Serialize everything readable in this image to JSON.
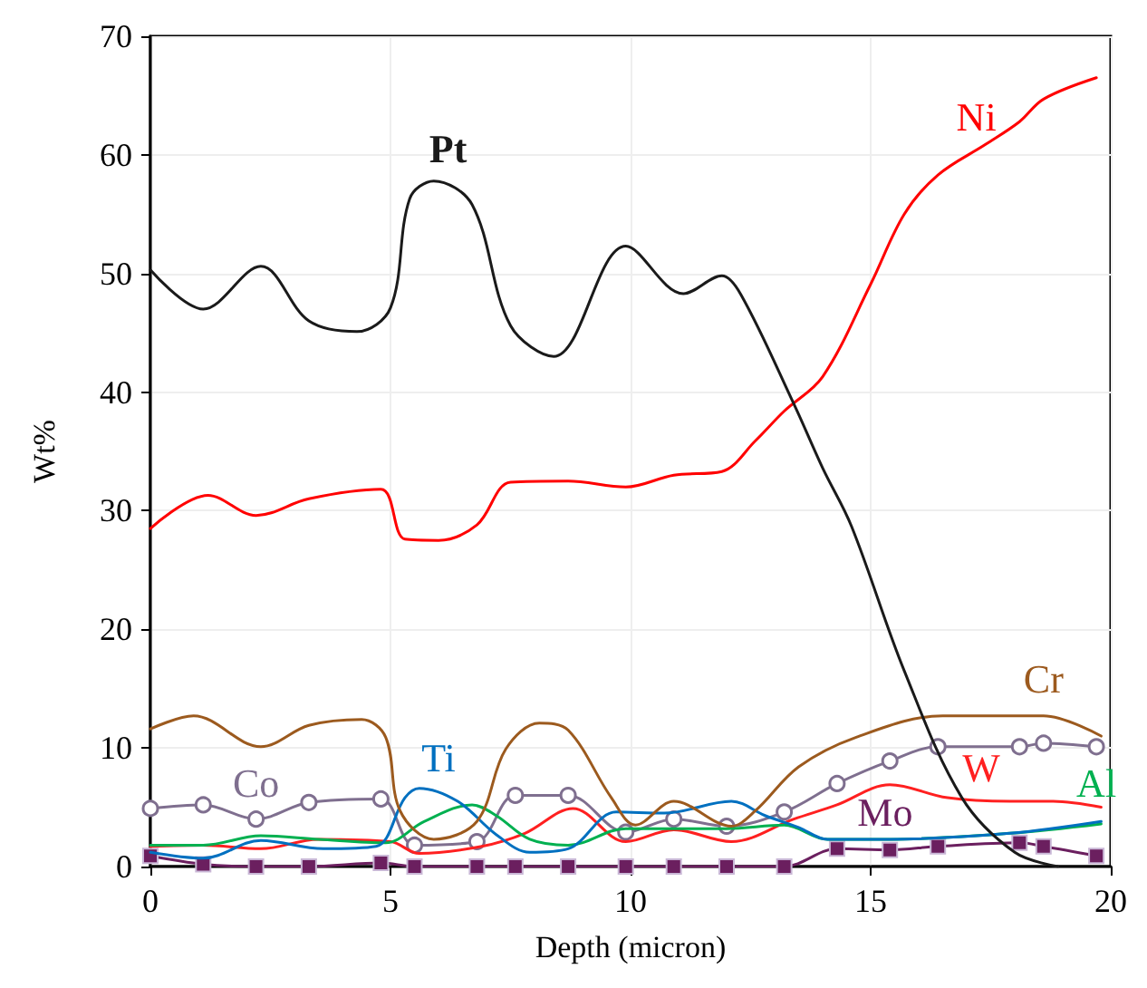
{
  "chart_data": {
    "type": "line",
    "xlabel": "Depth (micron)",
    "ylabel": "Wt%",
    "xlim": [
      0,
      20
    ],
    "xticks": [
      0,
      5,
      10,
      15,
      20
    ],
    "ylim": [
      0,
      70
    ],
    "yticks": [
      0,
      10,
      20,
      30,
      40,
      50,
      60,
      70
    ],
    "grid": true,
    "marker": "none",
    "line_style": "solid",
    "series": [
      {
        "name": "Pt",
        "color": "#1a1a1a",
        "x": [
          0,
          1.1,
          2.3,
          3.3,
          4.3,
          5.0,
          5.4,
          5.9,
          6.7,
          7.5,
          8.4,
          9.9,
          11.1,
          11.9,
          12.3,
          13.4,
          14.0,
          14.6,
          15.7,
          16.9,
          18.0,
          18.9
        ],
        "values": [
          50.3,
          47.0,
          50.6,
          46.0,
          45.1,
          47.1,
          56.3,
          57.8,
          55.8,
          45.6,
          43.0,
          52.3,
          48.3,
          49.8,
          48.2,
          39,
          33.6,
          28.7,
          16.5,
          5.8,
          1.2,
          0
        ]
      },
      {
        "name": "Ni",
        "color": "#ff0000",
        "x": [
          0,
          1.2,
          2.2,
          3.3,
          4.8,
          5.3,
          6.0,
          6.8,
          7.5,
          8.7,
          9.9,
          10.9,
          11.9,
          12.6,
          13.2,
          14.0,
          15.0,
          15.7,
          16.4,
          17.4,
          18.1,
          18.6,
          19.7
        ],
        "values": [
          28.5,
          31.3,
          29.6,
          31,
          31.8,
          27.6,
          27.5,
          28.8,
          32.4,
          32.5,
          32.0,
          33.0,
          33.3,
          35.9,
          38.4,
          41.3,
          49.1,
          55,
          58.3,
          60.9,
          62.8,
          64.7,
          66.5
        ]
      },
      {
        "name": "Cr",
        "color": "#9c5a1e",
        "x": [
          0,
          0.9,
          2.3,
          3.3,
          4.4,
          4.9,
          5.2,
          5.9,
          6.8,
          7.4,
          8.1,
          8.7,
          9.6,
          10.1,
          10.9,
          12.1,
          12.6,
          13.5,
          14.7,
          16.5,
          18.6,
          19.8
        ],
        "values": [
          11.6,
          12.7,
          10.1,
          11.9,
          12.4,
          10.9,
          4.7,
          2.3,
          3.8,
          9.9,
          12.1,
          11.5,
          5.8,
          3.5,
          5.5,
          3.4,
          4.7,
          8.4,
          10.9,
          12.7,
          12.7,
          11.0
        ]
      },
      {
        "name": "Ti",
        "color": "#0070c0",
        "x": [
          0,
          1.1,
          2.3,
          3.6,
          4.7,
          5.3,
          5.6,
          6.4,
          7.2,
          7.9,
          8.7,
          9.7,
          10.7,
          12.1,
          12.8,
          13.5,
          14.1,
          15.4,
          17.9,
          19.8
        ],
        "values": [
          1.2,
          0.7,
          2.2,
          1.5,
          1.7,
          5.8,
          6.6,
          5.5,
          2.7,
          1.2,
          1.5,
          4.6,
          4.5,
          5.5,
          4.3,
          3.3,
          2.3,
          2.3,
          2.8,
          3.8
        ]
      },
      {
        "name": "Al",
        "color": "#00b050",
        "x": [
          0,
          1.1,
          2.3,
          3.5,
          4.9,
          5.7,
          6.7,
          7.2,
          7.9,
          8.7,
          9.9,
          10.9,
          12.0,
          13.2,
          14.1,
          15.4,
          17.9,
          19.8
        ],
        "values": [
          1.8,
          1.8,
          2.6,
          2.3,
          2.0,
          3.8,
          5.2,
          4.3,
          2.3,
          1.8,
          3.2,
          3.2,
          3.2,
          3.5,
          2.3,
          2.3,
          2.8,
          3.6
        ]
      },
      {
        "name": "W",
        "color": "#ff2020",
        "x": [
          0,
          1.1,
          2.3,
          3.5,
          5.0,
          5.6,
          6.9,
          7.8,
          8.8,
          9.9,
          10.9,
          12.1,
          13.4,
          14.3,
          15.4,
          16.6,
          17.9,
          18.8,
          19.8
        ],
        "values": [
          1.7,
          1.8,
          1.5,
          2.3,
          2.1,
          1.1,
          1.7,
          2.8,
          4.9,
          2.1,
          3.1,
          2.1,
          4.0,
          5.2,
          6.9,
          5.8,
          5.5,
          5.5,
          5.0
        ]
      },
      {
        "name": "Co",
        "color": "#7f6f8f",
        "marker": "circle",
        "x": [
          0,
          1.1,
          2.2,
          3.3,
          4.8,
          5.5,
          6.8,
          7.6,
          8.7,
          9.9,
          10.9,
          12.0,
          13.2,
          14.3,
          15.4,
          16.4,
          18.1,
          18.6,
          19.7
        ],
        "values": [
          4.9,
          5.2,
          4.0,
          5.4,
          5.7,
          1.8,
          2.1,
          6.0,
          6.0,
          2.9,
          4.0,
          3.4,
          4.6,
          7.0,
          8.9,
          10.1,
          10.1,
          10.4,
          10.1
        ]
      },
      {
        "name": "Mo",
        "color": "#6b1f5f",
        "marker": "square",
        "x": [
          0,
          1.1,
          2.2,
          3.3,
          4.8,
          5.5,
          6.8,
          7.6,
          8.7,
          9.9,
          10.9,
          12.0,
          13.2,
          14.3,
          15.4,
          16.4,
          18.1,
          18.6,
          19.7
        ],
        "values": [
          0.9,
          0.2,
          0,
          0,
          0.3,
          0,
          0,
          0,
          0,
          0,
          0,
          0,
          0,
          1.5,
          1.4,
          1.7,
          2.0,
          1.7,
          0.9
        ]
      }
    ]
  }
}
